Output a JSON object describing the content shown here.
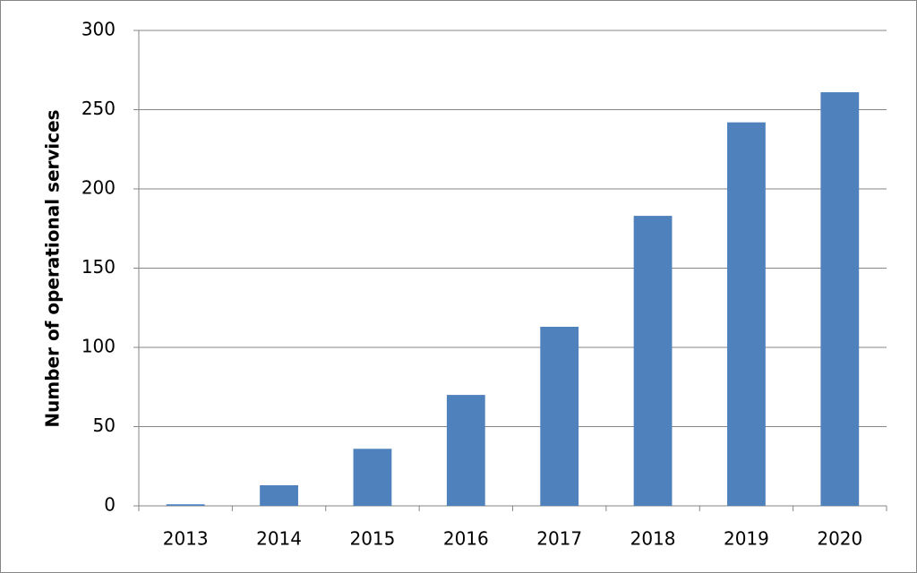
{
  "chart_data": {
    "type": "bar",
    "y_label": "Number of operational services",
    "categories": [
      "2013",
      "2014",
      "2015",
      "2016",
      "2017",
      "2018",
      "2019",
      "2020"
    ],
    "values": [
      1,
      13,
      36,
      70,
      113,
      183,
      242,
      261
    ],
    "color": "#4f81bd",
    "ylim": [
      0,
      300
    ],
    "yticks": [
      0,
      50,
      100,
      150,
      200,
      250,
      300
    ],
    "grid": true
  }
}
